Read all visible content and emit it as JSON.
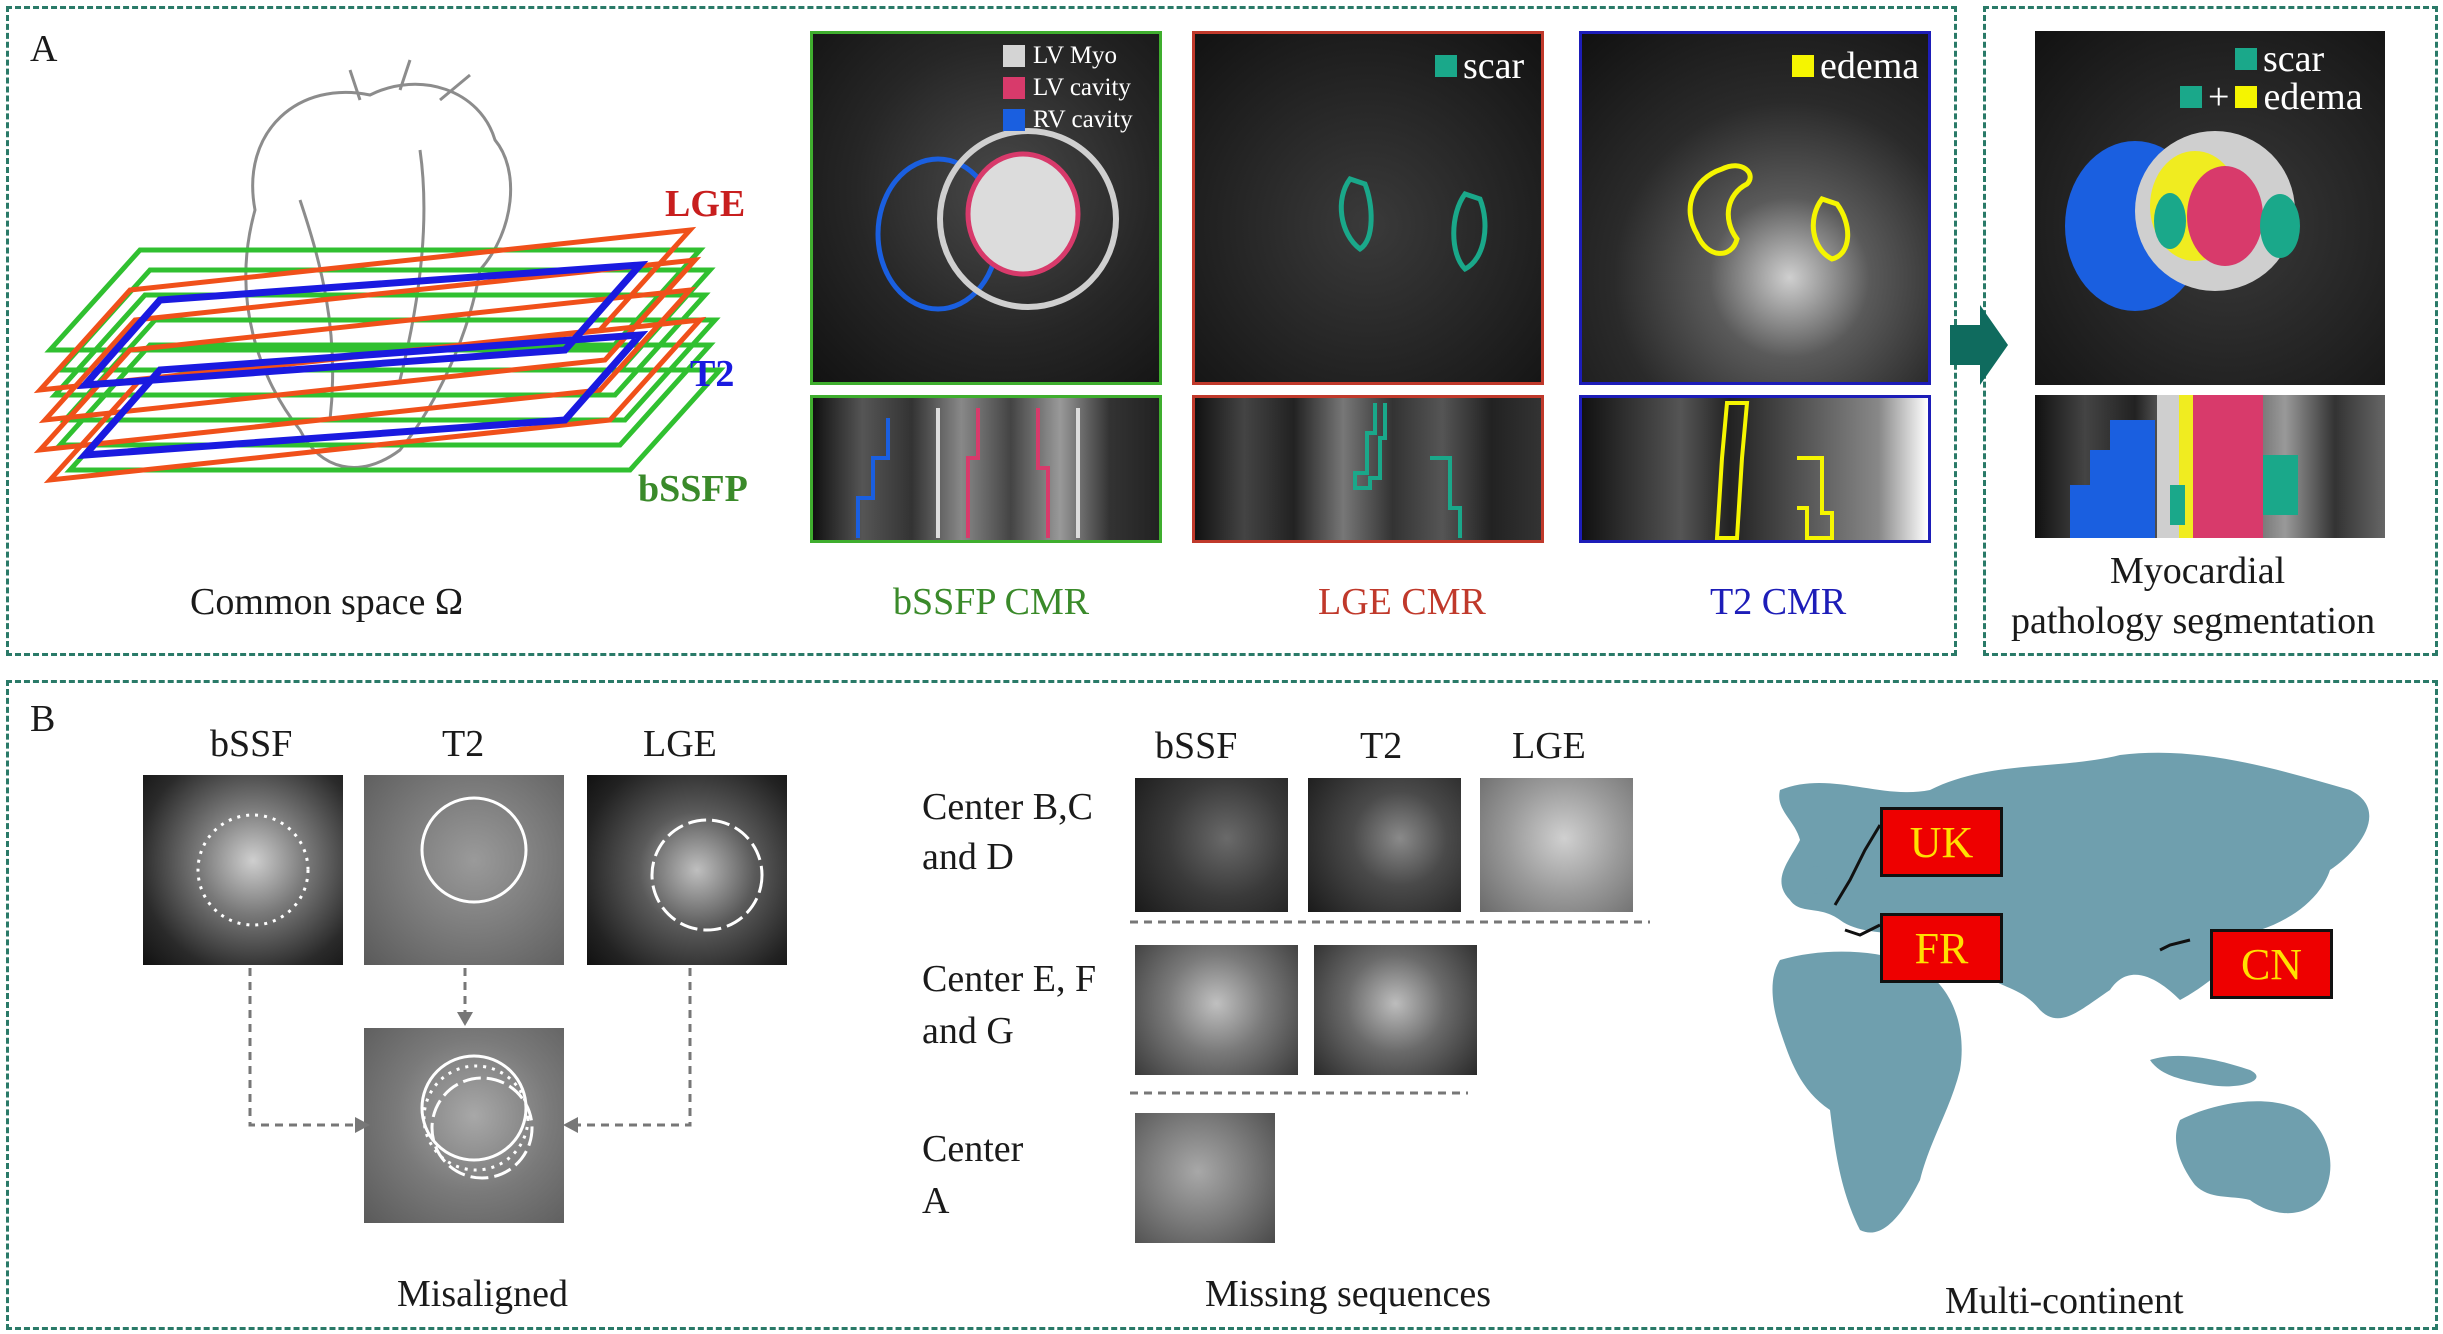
{
  "panelA": {
    "letter": "A",
    "plane_labels": {
      "lge": "LGE",
      "t2": "T2",
      "bssfp": "bSSFP"
    },
    "common_space": "Common space Ω",
    "modalities": [
      {
        "name": "bSSFP CMR",
        "color": "#3a8a2a"
      },
      {
        "name": "LGE CMR",
        "color": "#c0392b"
      },
      {
        "name": "T2 CMR",
        "color": "#1d1db8"
      }
    ],
    "bssfp_legend": [
      {
        "label": "LV Myo",
        "color": "#d4d4d4"
      },
      {
        "label": "LV cavity",
        "color": "#d83a6b"
      },
      {
        "label": "RV cavity",
        "color": "#1a5fe0"
      }
    ],
    "lge_legend": {
      "label": "scar",
      "color": "#1aa88a"
    },
    "t2_legend": {
      "label": "edema",
      "color": "#f5f500"
    },
    "result": {
      "legend_scar": "scar",
      "legend_edema": "edema",
      "legend_plus": "+",
      "title_line1": "Myocardial",
      "title_line2": "pathology segmentation"
    }
  },
  "panelB": {
    "letter": "B",
    "misaligned": {
      "headers": [
        "bSSF",
        "T2",
        "LGE"
      ],
      "caption": "Misaligned"
    },
    "missing": {
      "headers": [
        "bSSF",
        "T2",
        "LGE"
      ],
      "rows": [
        {
          "line1": "Center B,C",
          "line2": "and D"
        },
        {
          "line1": "Center E, F",
          "line2": "and G"
        },
        {
          "line1": "Center",
          "line2": "A"
        }
      ],
      "caption": "Missing sequences"
    },
    "map": {
      "flags": [
        "UK",
        "FR",
        "CN"
      ],
      "caption": "Multi-continent",
      "land_color": "#6f9fae",
      "flag_color": "#ee0000",
      "flag_text_color": "#ffe000"
    }
  }
}
